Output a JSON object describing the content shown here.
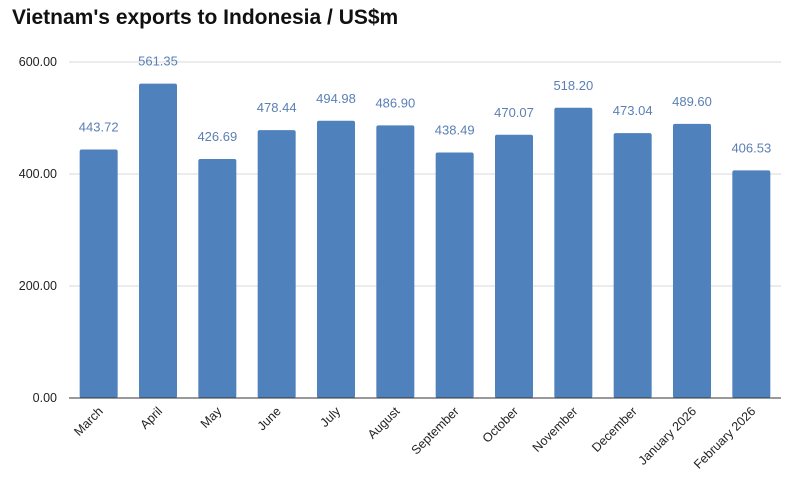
{
  "chart_data": {
    "type": "bar",
    "title": "Vietnam's exports to Indonesia / US$m",
    "xlabel": "",
    "ylabel": "",
    "categories": [
      "March",
      "April",
      "May",
      "June",
      "July",
      "August",
      "September",
      "October",
      "November",
      "December",
      "January 2026",
      "February 2026"
    ],
    "values": [
      443.72,
      561.35,
      426.69,
      478.44,
      494.98,
      486.9,
      438.49,
      470.07,
      518.2,
      473.04,
      489.6,
      406.53
    ],
    "data_labels": [
      "443.72",
      "561.35",
      "426.69",
      "478.44",
      "494.98",
      "486.90",
      "438.49",
      "470.07",
      "518.20",
      "473.04",
      "489.60",
      "406.53"
    ],
    "ylim": [
      0,
      600
    ],
    "yticks": [
      0,
      200,
      400,
      600
    ],
    "ytick_labels": [
      "0.00",
      "200.00",
      "400.00",
      "600.00"
    ],
    "grid": true,
    "legend": "none",
    "colors": {
      "bar": "#4f81bd",
      "data_label": "#5b7fb4",
      "grid": "#d9d9d9",
      "axis": "#333333"
    }
  }
}
